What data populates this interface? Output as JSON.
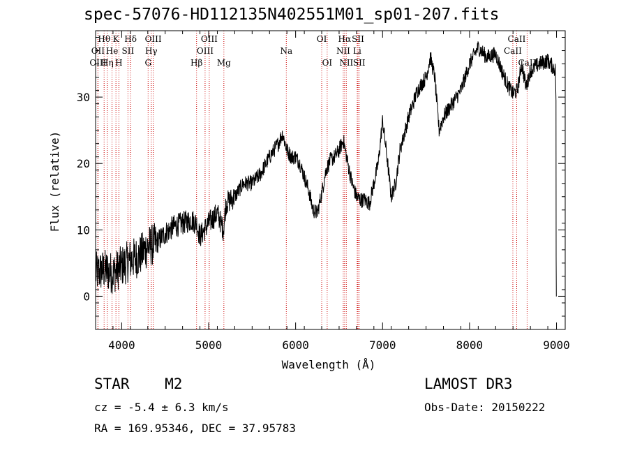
{
  "header": {
    "title": "spec-57076-HD112135N402551M01_sp01-207.fits"
  },
  "info": {
    "object_class": "STAR",
    "subclass": "M2",
    "survey": "LAMOST DR3",
    "cz_text": "cz = -5.4 ± 6.3 km/s",
    "obs_date_text": "Obs-Date: 20150222",
    "radec_text": "RA = 169.95346, DEC =  37.95783"
  },
  "chart_data": {
    "type": "line",
    "title": "spec-57076-HD112135N402551M01_sp01-207.fits",
    "xlabel": "Wavelength (Å)",
    "ylabel": "Flux (relative)",
    "xlim": [
      3700,
      9100
    ],
    "ylim": [
      -5,
      40
    ],
    "xticks": [
      4000,
      5000,
      6000,
      7000,
      8000,
      9000
    ],
    "yticks": [
      0,
      10,
      20,
      30
    ],
    "line_color": "#000000",
    "marker_color": "#cc0000",
    "continuum": [
      [
        3700,
        3.5
      ],
      [
        3800,
        4
      ],
      [
        3900,
        3.5
      ],
      [
        4000,
        4.5
      ],
      [
        4100,
        5.5
      ],
      [
        4200,
        6
      ],
      [
        4300,
        7.5
      ],
      [
        4400,
        8
      ],
      [
        4500,
        9.5
      ],
      [
        4600,
        10.5
      ],
      [
        4700,
        11
      ],
      [
        4800,
        11.5
      ],
      [
        4860,
        11
      ],
      [
        4900,
        9
      ],
      [
        5000,
        11
      ],
      [
        5100,
        12.5
      ],
      [
        5170,
        10
      ],
      [
        5200,
        14
      ],
      [
        5300,
        15
      ],
      [
        5400,
        17
      ],
      [
        5500,
        17
      ],
      [
        5600,
        18.5
      ],
      [
        5700,
        21
      ],
      [
        5800,
        23
      ],
      [
        5850,
        24.5
      ],
      [
        5900,
        22
      ],
      [
        5950,
        21
      ],
      [
        6000,
        21
      ],
      [
        6050,
        20
      ],
      [
        6100,
        18
      ],
      [
        6150,
        16
      ],
      [
        6200,
        13
      ],
      [
        6250,
        12.5
      ],
      [
        6300,
        15.5
      ],
      [
        6350,
        19
      ],
      [
        6400,
        20.5
      ],
      [
        6450,
        21
      ],
      [
        6500,
        22
      ],
      [
        6550,
        23.5
      ],
      [
        6600,
        20
      ],
      [
        6650,
        17
      ],
      [
        6700,
        15
      ],
      [
        6750,
        14.5
      ],
      [
        6800,
        14.5
      ],
      [
        6850,
        14
      ],
      [
        6900,
        17
      ],
      [
        6950,
        20
      ],
      [
        7000,
        26.5
      ],
      [
        7050,
        21
      ],
      [
        7100,
        15
      ],
      [
        7150,
        17
      ],
      [
        7200,
        22
      ],
      [
        7300,
        27
      ],
      [
        7400,
        31
      ],
      [
        7500,
        33
      ],
      [
        7550,
        36
      ],
      [
        7600,
        33
      ],
      [
        7650,
        25
      ],
      [
        7700,
        27
      ],
      [
        7800,
        29
      ],
      [
        7900,
        31
      ],
      [
        8000,
        35
      ],
      [
        8100,
        37.5
      ],
      [
        8200,
        36
      ],
      [
        8300,
        36.5
      ],
      [
        8400,
        33
      ],
      [
        8450,
        31.5
      ],
      [
        8500,
        30.5
      ],
      [
        8550,
        31
      ],
      [
        8600,
        35
      ],
      [
        8650,
        31.5
      ],
      [
        8700,
        34
      ],
      [
        8800,
        35
      ],
      [
        8900,
        35.5
      ],
      [
        8990,
        34
      ],
      [
        8995,
        29.5
      ],
      [
        9000,
        0
      ]
    ],
    "lines": [
      {
        "label": "Hθ",
        "wl": 3798,
        "row": 0
      },
      {
        "label": "K",
        "wl": 3934,
        "row": 0
      },
      {
        "label": "Hδ",
        "wl": 4102,
        "row": 0
      },
      {
        "label": "OIII",
        "wl": 4363,
        "row": 0
      },
      {
        "label": "OIII",
        "wl": 5007,
        "row": 0
      },
      {
        "label": "OI",
        "wl": 6300,
        "row": 0
      },
      {
        "label": "Hα",
        "wl": 6563,
        "row": 0
      },
      {
        "label": "SII",
        "wl": 6717,
        "row": 0
      },
      {
        "label": "CaII",
        "wl": 8542,
        "row": 0
      },
      {
        "label": "OII",
        "wl": 3727,
        "row": 1
      },
      {
        "label": "He",
        "wl": 3889,
        "row": 1
      },
      {
        "label": "SII",
        "wl": 4072,
        "row": 1
      },
      {
        "label": "Hγ",
        "wl": 4340,
        "row": 1
      },
      {
        "label": "OIII",
        "wl": 4959,
        "row": 1
      },
      {
        "label": "Na",
        "wl": 5893,
        "row": 1
      },
      {
        "label": "NII",
        "wl": 6548,
        "row": 1
      },
      {
        "label": "Li",
        "wl": 6708,
        "row": 1
      },
      {
        "label": "CaII",
        "wl": 8498,
        "row": 1
      },
      {
        "label": "OIII",
        "wl": 3727,
        "row": 2
      },
      {
        "label": "Hη",
        "wl": 3835,
        "row": 2
      },
      {
        "label": "H",
        "wl": 3968,
        "row": 2
      },
      {
        "label": "G",
        "wl": 4304,
        "row": 2
      },
      {
        "label": "Hβ",
        "wl": 4861,
        "row": 2
      },
      {
        "label": "Mg",
        "wl": 5175,
        "row": 2
      },
      {
        "label": "OI",
        "wl": 6363,
        "row": 2
      },
      {
        "label": "NII",
        "wl": 6583,
        "row": 2
      },
      {
        "label": "SII",
        "wl": 6731,
        "row": 2
      },
      {
        "label": "CaII",
        "wl": 8662,
        "row": 2
      }
    ]
  }
}
